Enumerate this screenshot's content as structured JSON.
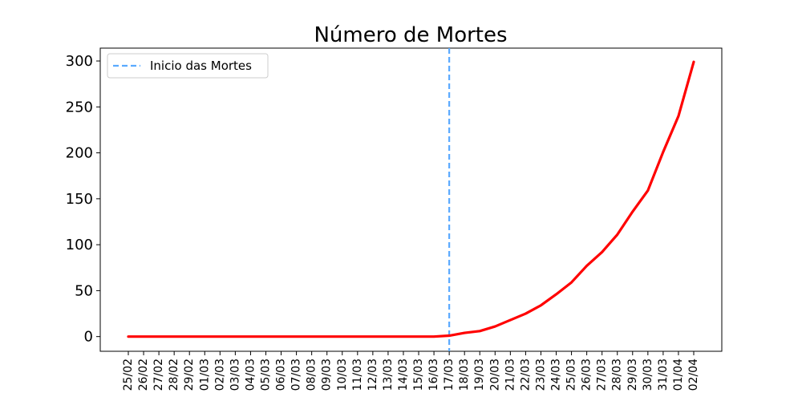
{
  "chart_data": {
    "type": "line",
    "title": "Número de Mortes",
    "xlabel": "",
    "ylabel": "",
    "categories": [
      "25/02",
      "26/02",
      "27/02",
      "28/02",
      "29/02",
      "01/03",
      "02/03",
      "03/03",
      "04/03",
      "05/03",
      "06/03",
      "07/03",
      "08/03",
      "09/03",
      "10/03",
      "11/03",
      "12/03",
      "13/03",
      "14/03",
      "15/03",
      "16/03",
      "17/03",
      "18/03",
      "19/03",
      "20/03",
      "21/03",
      "22/03",
      "23/03",
      "24/03",
      "25/03",
      "26/03",
      "27/03",
      "28/03",
      "29/03",
      "30/03",
      "31/03",
      "01/04",
      "02/04"
    ],
    "series": [
      {
        "name": "",
        "color": "#ff0000",
        "values": [
          0,
          0,
          0,
          0,
          0,
          0,
          0,
          0,
          0,
          0,
          0,
          0,
          0,
          0,
          0,
          0,
          0,
          0,
          0,
          0,
          0,
          1,
          4,
          6,
          11,
          18,
          25,
          34,
          46,
          59,
          77,
          92,
          111,
          136,
          159,
          201,
          240,
          299
        ]
      }
    ],
    "vline": {
      "category": "17/03",
      "label": "Inicio das Mortes",
      "color": "#5aaaff",
      "style": "dashed"
    },
    "yticks": [
      0,
      50,
      100,
      150,
      200,
      250,
      300
    ],
    "ylim": [
      -16,
      314
    ],
    "grid": false,
    "legend": "top-left"
  }
}
